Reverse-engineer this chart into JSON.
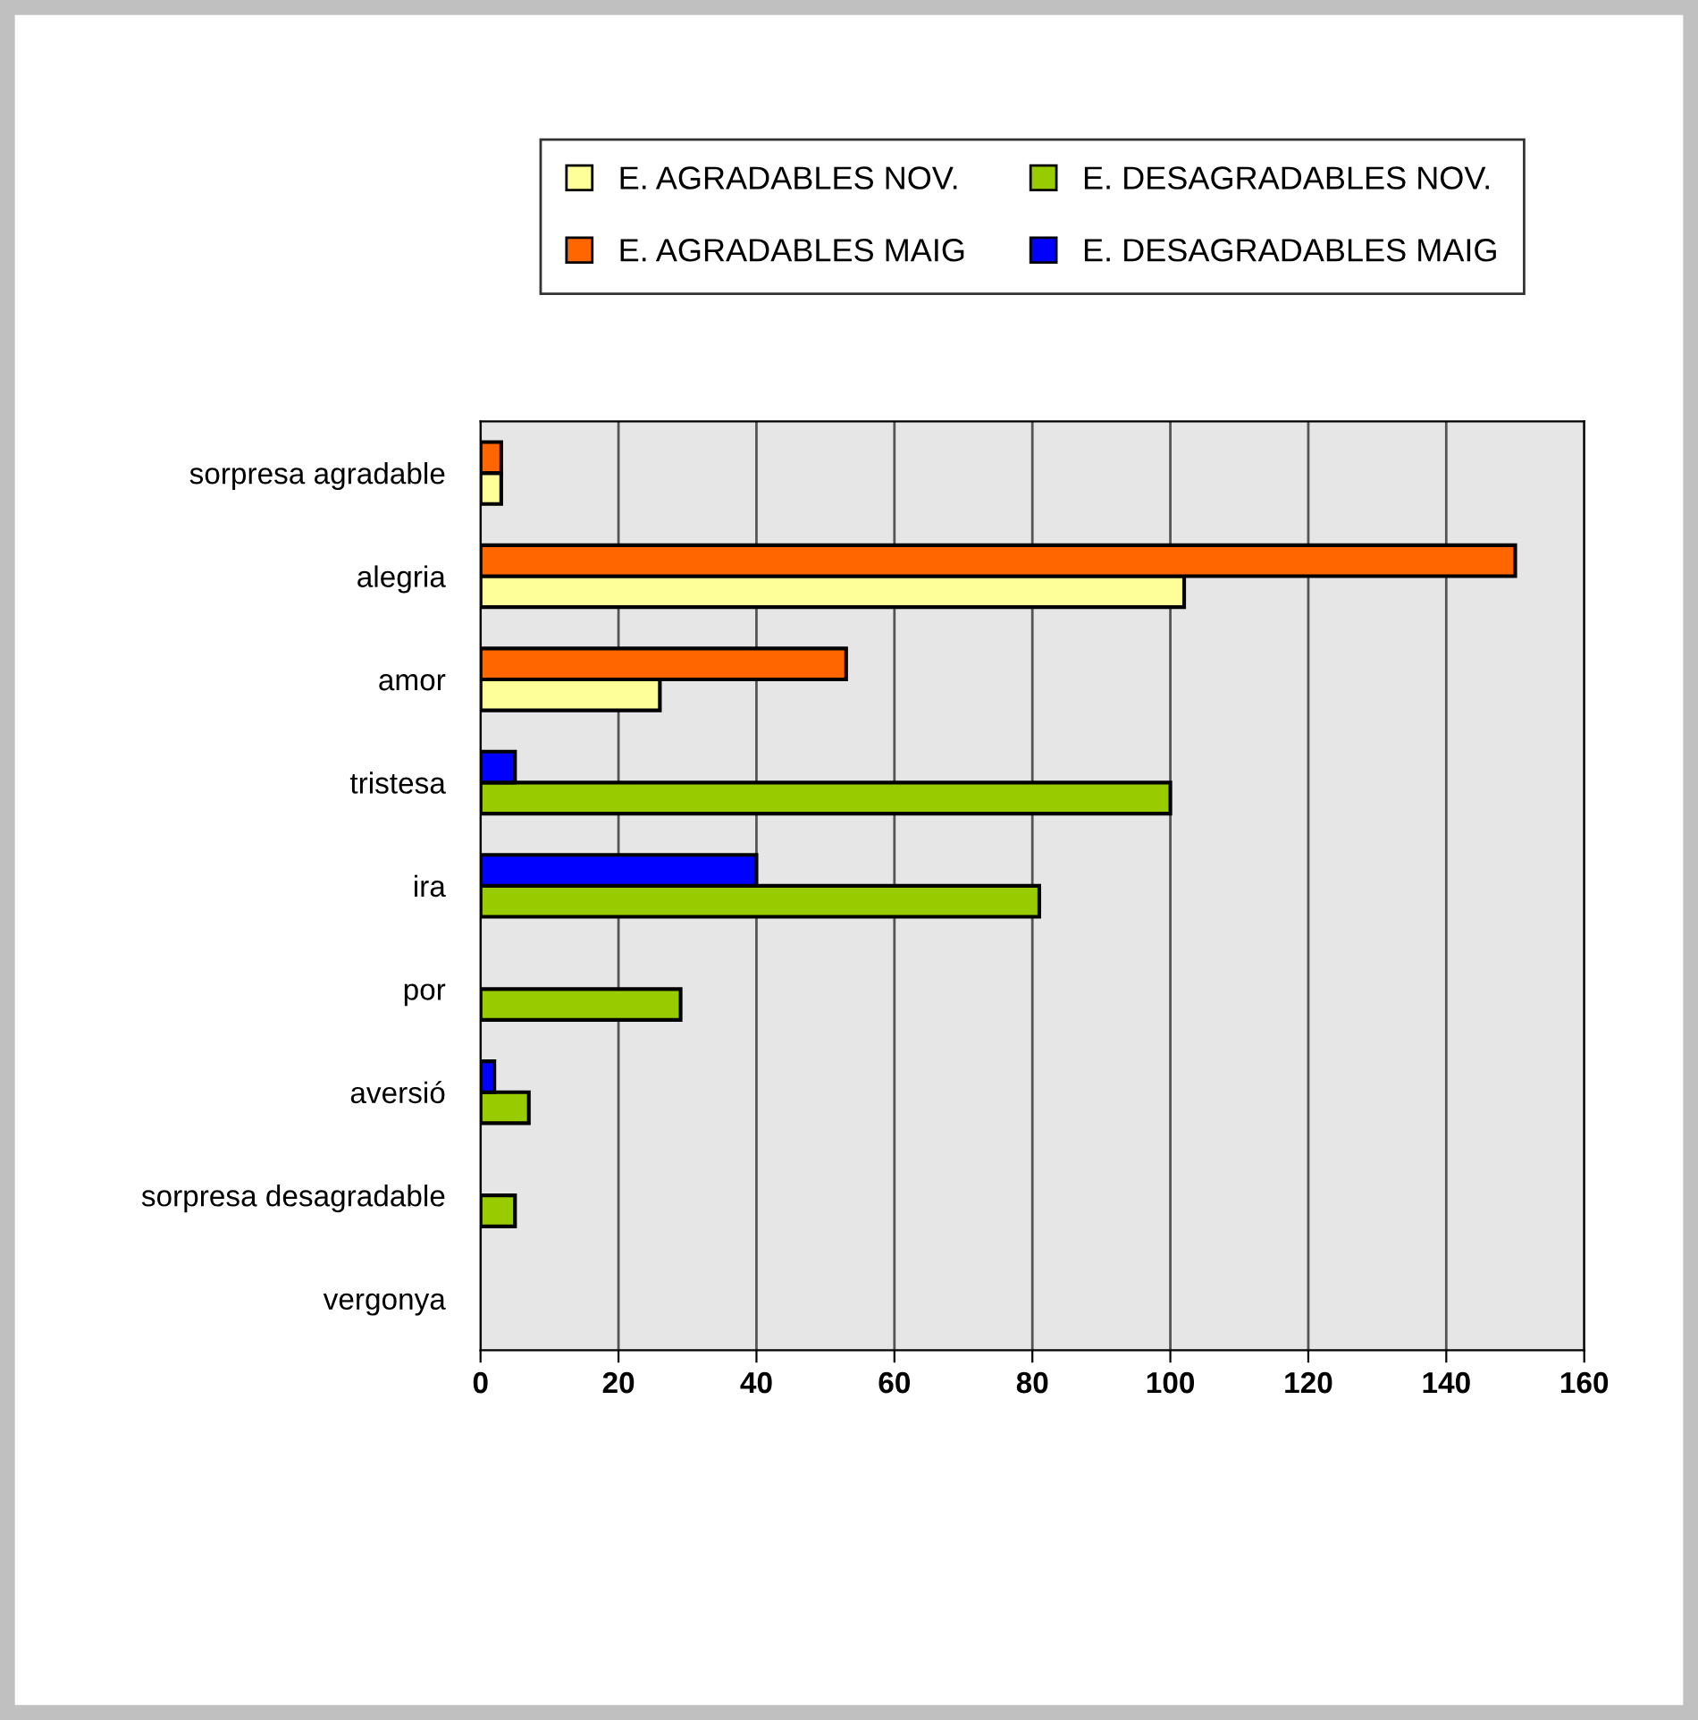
{
  "chart_data": {
    "type": "bar",
    "orientation": "horizontal",
    "categories": [
      "sorpresa agradable",
      "alegria",
      "amor",
      "tristesa",
      "ira",
      "por",
      "aversió",
      "sorpresa desagradable",
      "vergonya"
    ],
    "series": [
      {
        "name": "E. AGRADABLES NOV.",
        "color": "#ffff99",
        "values": [
          3,
          102,
          26,
          null,
          null,
          null,
          null,
          null,
          null
        ]
      },
      {
        "name": "E. AGRADABLES MAIG",
        "color": "#ff6600",
        "values": [
          3,
          150,
          53,
          null,
          null,
          null,
          null,
          null,
          null
        ]
      },
      {
        "name": "E. DESAGRADABLES NOV.",
        "color": "#99cc00",
        "values": [
          null,
          null,
          null,
          100,
          81,
          29,
          7,
          5,
          null
        ]
      },
      {
        "name": "E. DESAGRADABLES MAIG",
        "color": "#0000ff",
        "values": [
          null,
          null,
          null,
          5,
          40,
          null,
          2,
          null,
          null
        ]
      }
    ],
    "xlim": [
      0,
      160
    ],
    "xticks": [
      0,
      20,
      40,
      60,
      80,
      100,
      120,
      140,
      160
    ],
    "grid": "x",
    "legend": "top"
  }
}
